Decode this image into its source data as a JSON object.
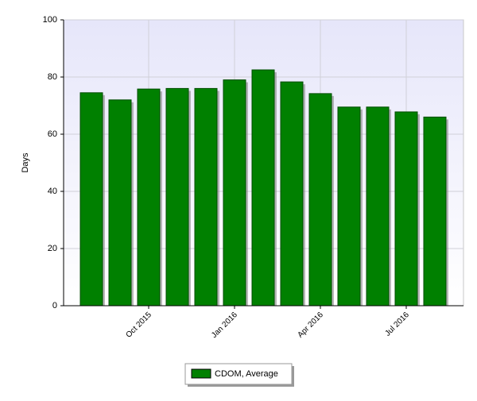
{
  "chart_data": {
    "type": "bar",
    "categories": [
      null,
      null,
      "Oct 2015",
      null,
      null,
      "Jan 2016",
      null,
      null,
      "Apr 2016",
      null,
      null,
      "Jul 2016",
      null
    ],
    "series": [
      {
        "name": "CDOM, Average",
        "color": "#008000",
        "values": [
          74.5,
          72,
          75.8,
          76,
          76,
          79,
          82.5,
          78.3,
          74.2,
          69.5,
          69.5,
          67.8,
          66
        ]
      }
    ],
    "y_label": "Days",
    "ylim": [
      0,
      100
    ],
    "yticks": [
      0,
      20,
      40,
      60,
      80,
      100
    ],
    "grid": true,
    "legend": "bottom"
  }
}
